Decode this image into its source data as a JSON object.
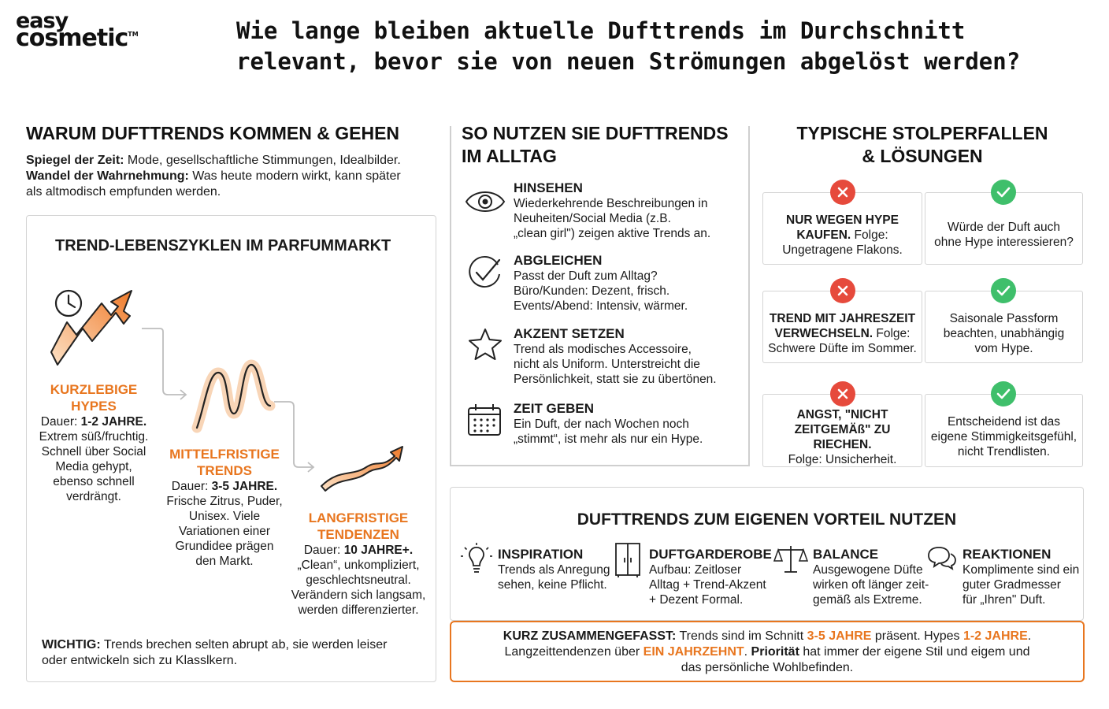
{
  "logo": {
    "line1": "easy",
    "line2": "cosmetic",
    "tm": "TM"
  },
  "title": {
    "line1": "Wie lange bleiben aktuelle Dufttrends im Durchschnitt",
    "line2": "relevant, bevor sie von neuen Strömungen abgelöst werden?"
  },
  "why": {
    "heading": "WARUM DUFTTRENDS KOMMEN & GEHEN",
    "p1_label": "Spiegel der Zeit:",
    "p1_text": " Mode, gesellschaftliche Stimmungen, Idealbilder.",
    "p2_label": "Wandel der Wahrnehmung:",
    "p2_text": " Was heute modern wirkt, kann später",
    "p2_text2": "als altmodisch empfunden werden."
  },
  "lifecycle": {
    "heading": "TREND-LEBENSZYKLEN IM PARFUMMARKT",
    "stages": [
      {
        "title1": "KURZLEBIGE",
        "title2": "HYPES",
        "dur_label": "Dauer: ",
        "dur_value": "1-2 JAHRE.",
        "lines": [
          "Extrem süß/fruchtig.",
          "Schnell über Social",
          "Media gehypt,",
          "ebenso schnell",
          "verdrängt."
        ]
      },
      {
        "title1": "MITTELFRISTIGE",
        "title2": "TRENDS",
        "dur_label": "Dauer: ",
        "dur_value": "3-5 JAHRE.",
        "lines": [
          "Frische Zitrus, Puder,",
          "Unisex. Viele",
          "Variationen einer",
          "Grundidee prägen",
          "den Markt."
        ]
      },
      {
        "title1": "LANGFRISTIGE",
        "title2": "TENDENZEN",
        "dur_label": "Dauer: ",
        "dur_value": "10 JAHRE+.",
        "lines": [
          "„Clean“, unkompliziert,",
          "geschlechtsneutral.",
          "Verändern sich langsam,",
          "werden differenzierter."
        ]
      }
    ],
    "note_label": "WICHTIG:",
    "note_text": " Trends brechen selten abrupt ab, sie werden leiser",
    "note_text2": "oder entwickeln sich zu Klasslkern."
  },
  "usage": {
    "heading1": "SO NUTZEN SIE DUFTTRENDS",
    "heading2": "IM ALLTAG",
    "steps": [
      {
        "icon": "eye-icon",
        "title": "HINSEHEN",
        "lines": [
          "Wiederkehrende Beschreibungen in",
          "Neuheiten/Social Media (z.B.",
          "„clean girl\") zeigen aktive Trends an."
        ]
      },
      {
        "icon": "check-circle-icon",
        "title": "ABGLEICHEN",
        "lines": [
          "Passt der Duft zum Alltag?",
          "Büro/Kunden: Dezent, frisch.",
          "Events/Abend: Intensiv, wärmer."
        ]
      },
      {
        "icon": "star-icon",
        "title": "AKZENT SETZEN",
        "lines": [
          "Trend als modisches Accessoire,",
          "nicht als Uniform. Unterstreicht die",
          "Persönlichkeit, statt sie zu übertönen."
        ]
      },
      {
        "icon": "calendar-icon",
        "title": "ZEIT GEBEN",
        "lines": [
          "Ein Duft, der nach Wochen noch",
          "„stimmt“, ist mehr als nur ein Hype."
        ]
      }
    ]
  },
  "pitfalls": {
    "heading1": "TYPISCHE STOLPERFALLEN",
    "heading2": "& LÖSUNGEN",
    "rows": [
      {
        "problem_bold": [
          "NUR WEGEN HYPE",
          "KAUFEN."
        ],
        "problem_rest": " Folge:",
        "problem_line3": "Ungetragene Flakons.",
        "solution": [
          "Würde der Duft auch",
          "ohne Hype interessieren?"
        ]
      },
      {
        "problem_bold": [
          "TREND MIT JAHRESZEIT",
          "VERWECHSELN."
        ],
        "problem_rest": " Folge:",
        "problem_line3": "Schwere Düfte im Sommer.",
        "solution": [
          "Saisonale Passform",
          "beachten, unabhängig",
          "vom Hype."
        ]
      },
      {
        "problem_bold": [
          "ANGST, \"NICHT",
          "ZEITGEMÄß\" ZU RIECHEN."
        ],
        "problem_rest": "",
        "problem_line3": "Folge: Unsicherheit.",
        "solution": [
          "Entscheidend ist das",
          "eigene Stimmigkeitsgefühl,",
          "nicht Trendlisten."
        ]
      }
    ]
  },
  "advantage": {
    "heading": "DUFTTRENDS ZUM EIGENEN VORTEIL NUTZEN",
    "items": [
      {
        "icon": "lightbulb-icon",
        "title": "INSPIRATION",
        "lines": [
          "Trends als Anregung",
          "sehen, keine Pflicht."
        ]
      },
      {
        "icon": "wardrobe-icon",
        "title": "DUFTGARDEROBE",
        "lines": [
          "Aufbau: Zeitloser",
          "Alltag + Trend-Akzent",
          "+ Dezent Formal."
        ]
      },
      {
        "icon": "scales-icon",
        "title": "BALANCE",
        "lines": [
          "Ausgewogene Düfte",
          "wirken oft länger zeit-",
          "gemäß als Extreme."
        ]
      },
      {
        "icon": "speech-bubbles-icon",
        "title": "REAKTIONEN",
        "lines": [
          "Komplimente sind ein",
          "guter Gradmesser",
          "für „Ihren\" Duft."
        ]
      }
    ]
  },
  "summary": {
    "label": "KURZ ZUSAMMENGEFASST:",
    "t1": " Trends sind im Schnitt ",
    "h1": "3-5 JAHRE",
    "t2": " präsent. Hypes ",
    "h2": "1-2 JAHRE",
    "t3": ".",
    "t4": "Langzeittendenzen über ",
    "h3": "EIN JAHRZEHNT",
    "t5": ". ",
    "b2": "Priorität",
    "t6": " hat immer der eigene Stil und eigem und",
    "t7": "das persönliche Wohlbefinden."
  },
  "colors": {
    "accent": "#e8761f",
    "error": "#e64a3c",
    "success": "#3fbf6b",
    "border": "#d4d4d4"
  }
}
